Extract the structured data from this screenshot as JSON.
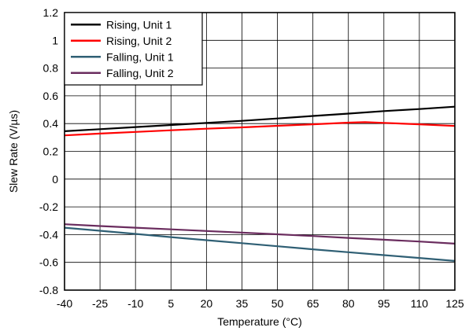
{
  "chart_data": {
    "type": "line",
    "xlabel": "Temperature (°C)",
    "ylabel": "Slew Rate (V/µs)",
    "xlim": [
      -40,
      125
    ],
    "ylim": [
      -0.8,
      1.2
    ],
    "x_ticks": [
      -40,
      -25,
      -10,
      5,
      20,
      35,
      50,
      65,
      80,
      95,
      110,
      125
    ],
    "y_ticks": [
      "-0.8",
      "-0.6",
      "-0.4",
      "-0.2",
      "0",
      "0.2",
      "0.4",
      "0.6",
      "0.8",
      "1",
      "1.2"
    ],
    "grid": true,
    "legend_position": "top-left",
    "series": [
      {
        "name": "Rising, Unit 1",
        "color": "#000000",
        "x": [
          -40,
          -25,
          -10,
          5,
          20,
          35,
          50,
          65,
          80,
          95,
          110,
          125
        ],
        "y": [
          0.345,
          0.36,
          0.375,
          0.39,
          0.405,
          0.42,
          0.437,
          0.455,
          0.472,
          0.49,
          0.505,
          0.522
        ]
      },
      {
        "name": "Rising, Unit 2",
        "color": "#ff0000",
        "x": [
          -40,
          -25,
          -10,
          5,
          20,
          35,
          50,
          65,
          80,
          87,
          95,
          110,
          125
        ],
        "y": [
          0.315,
          0.328,
          0.34,
          0.352,
          0.363,
          0.373,
          0.384,
          0.395,
          0.407,
          0.41,
          0.405,
          0.395,
          0.383
        ]
      },
      {
        "name": "Falling, Unit 1",
        "color": "#2f5f74",
        "x": [
          -40,
          -25,
          -10,
          5,
          20,
          35,
          50,
          65,
          80,
          95,
          110,
          125
        ],
        "y": [
          -0.35,
          -0.372,
          -0.395,
          -0.418,
          -0.44,
          -0.462,
          -0.484,
          -0.506,
          -0.527,
          -0.548,
          -0.568,
          -0.59
        ]
      },
      {
        "name": "Falling, Unit 2",
        "color": "#6a2c5e",
        "x": [
          -40,
          -25,
          -10,
          5,
          20,
          35,
          50,
          65,
          80,
          95,
          110,
          125
        ],
        "y": [
          -0.325,
          -0.338,
          -0.35,
          -0.362,
          -0.374,
          -0.386,
          -0.398,
          -0.41,
          -0.424,
          -0.437,
          -0.45,
          -0.465
        ]
      }
    ]
  }
}
